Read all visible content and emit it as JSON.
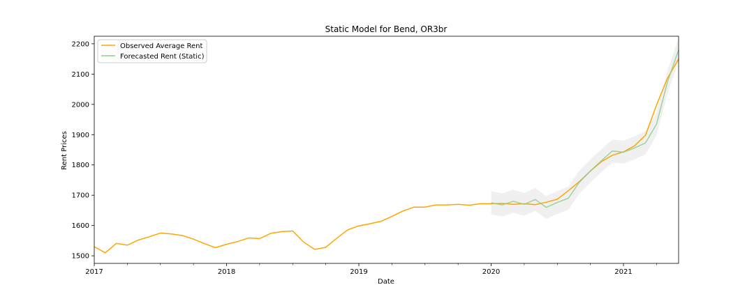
{
  "chart_data": {
    "type": "line",
    "title": "Static Model for Bend, OR3br",
    "xlabel": "Date",
    "ylabel": "Rent Prices",
    "xlim": [
      "2017-01",
      "2021-06"
    ],
    "ylim": [
      1475,
      2225
    ],
    "x_ticks": [
      "2017",
      "2018",
      "2019",
      "2020",
      "2021"
    ],
    "y_ticks": [
      1500,
      1600,
      1700,
      1800,
      1900,
      2000,
      2100,
      2200
    ],
    "grid": false,
    "legend_position": "top-left",
    "colors": {
      "observed": "#ffa500",
      "forecast": "#8fcb8f",
      "ci": "#d3d3d3"
    },
    "series": [
      {
        "name": "Observed Average Rent",
        "x": [
          "2017-01",
          "2017-02",
          "2017-03",
          "2017-04",
          "2017-05",
          "2017-06",
          "2017-07",
          "2017-08",
          "2017-09",
          "2017-10",
          "2017-11",
          "2017-12",
          "2018-01",
          "2018-02",
          "2018-03",
          "2018-04",
          "2018-05",
          "2018-06",
          "2018-07",
          "2018-08",
          "2018-09",
          "2018-10",
          "2018-11",
          "2018-12",
          "2019-01",
          "2019-02",
          "2019-03",
          "2019-04",
          "2019-05",
          "2019-06",
          "2019-07",
          "2019-08",
          "2019-09",
          "2019-10",
          "2019-11",
          "2019-12",
          "2020-01",
          "2020-02",
          "2020-03",
          "2020-04",
          "2020-05",
          "2020-06",
          "2020-07",
          "2020-08",
          "2020-09",
          "2020-10",
          "2020-11",
          "2020-12",
          "2021-01",
          "2021-02",
          "2021-03",
          "2021-04",
          "2021-05",
          "2021-06"
        ],
        "values": [
          1530,
          1510,
          1541,
          1535,
          1552,
          1563,
          1575,
          1572,
          1567,
          1555,
          1540,
          1527,
          1538,
          1547,
          1559,
          1557,
          1574,
          1580,
          1582,
          1545,
          1521,
          1528,
          1558,
          1586,
          1599,
          1606,
          1614,
          1630,
          1648,
          1661,
          1661,
          1668,
          1668,
          1670,
          1667,
          1672,
          1672,
          1673,
          1670,
          1672,
          1669,
          1677,
          1687,
          1715,
          1745,
          1780,
          1811,
          1832,
          1843,
          1863,
          1898,
          1998,
          2087,
          2150
        ]
      },
      {
        "name": "Forecasted Rent (Static)",
        "x": [
          "2020-01",
          "2020-02",
          "2020-03",
          "2020-04",
          "2020-05",
          "2020-06",
          "2020-07",
          "2020-08",
          "2020-09",
          "2020-10",
          "2020-11",
          "2020-12",
          "2021-01",
          "2021-02",
          "2021-03",
          "2021-04",
          "2021-05",
          "2021-06"
        ],
        "values": [
          1675,
          1668,
          1680,
          1670,
          1686,
          1660,
          1676,
          1690,
          1743,
          1780,
          1814,
          1846,
          1842,
          1856,
          1873,
          1935,
          2075,
          2180
        ],
        "ci_lower": [
          1637,
          1630,
          1642,
          1632,
          1648,
          1622,
          1638,
          1652,
          1705,
          1742,
          1776,
          1808,
          1804,
          1818,
          1835,
          1897,
          2037,
          2142
        ],
        "ci_upper": [
          1713,
          1706,
          1718,
          1708,
          1724,
          1698,
          1714,
          1728,
          1781,
          1818,
          1852,
          1884,
          1880,
          1894,
          1911,
          1973,
          2113,
          2218
        ]
      }
    ]
  }
}
